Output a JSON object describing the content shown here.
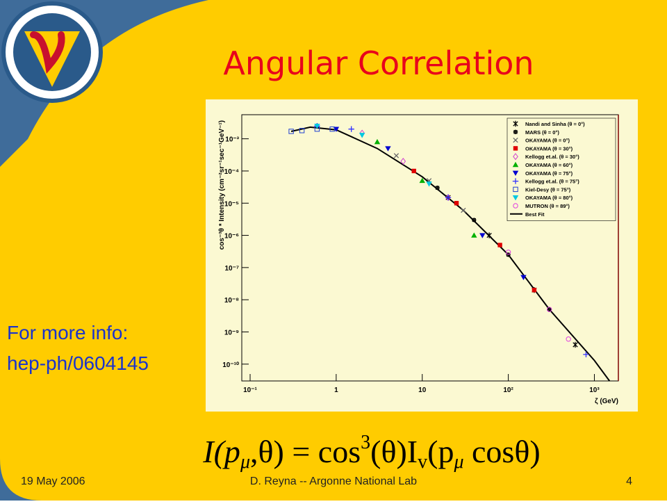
{
  "slide": {
    "title": "Angular Correlation",
    "info": [
      "For more info:",
      "hep-ph/0604145"
    ],
    "formula": [
      "I(p",
      "μ",
      ",θ) = cos",
      "3",
      "(θ)I",
      "v",
      "(p",
      "μ",
      " cosθ)"
    ],
    "footer": {
      "date": "19 May 2006",
      "author": "D. Reyna -- Argonne National Lab",
      "page": "4"
    }
  },
  "chart_data": {
    "type": "scatter",
    "y_label": "cos⁻³θ * Intensity (cm⁻²sr⁻¹sec⁻¹GeV⁻¹)",
    "x_label": "ζ (GeV)",
    "x_log": true,
    "y_log": true,
    "grid": false,
    "legend": "top-right",
    "xlim": [
      0.08,
      1900
    ],
    "ylim": [
      3e-11,
      0.0056
    ],
    "xticks": [
      {
        "value": 0.1,
        "label": "10⁻¹"
      },
      1,
      10,
      {
        "value": 100,
        "label": "10²"
      },
      {
        "value": 1000,
        "label": "10³"
      }
    ],
    "yticks": [
      {
        "value": 1e-10,
        "label": "10⁻¹⁰"
      },
      {
        "value": 1e-09,
        "label": "10⁻⁹"
      },
      {
        "value": 1e-08,
        "label": "10⁻⁸"
      },
      {
        "value": 1e-07,
        "label": "10⁻⁷"
      },
      {
        "value": 1e-06,
        "label": "10⁻⁶"
      },
      {
        "value": 1e-05,
        "label": "10⁻⁵"
      },
      {
        "value": 0.0001,
        "label": "10⁻⁴"
      },
      {
        "value": 0.001,
        "label": "10⁻³"
      }
    ],
    "series": [
      {
        "name": "Nandi and Sinha (θ = 0°)",
        "color": "#000000",
        "marker": "star",
        "x": [
          20,
          60,
          200,
          600
        ],
        "values": [
          1.5e-05,
          1e-06,
          2e-08,
          4e-10
        ]
      },
      {
        "name": "MARS (θ = 0°)",
        "color": "#000000",
        "marker": "cross-circle",
        "x": [
          15,
          40,
          100,
          300
        ],
        "values": [
          3e-05,
          3e-06,
          2.5e-07,
          5e-09
        ]
      },
      {
        "name": "OKAYAMA (θ = 0°)",
        "color": "#666666",
        "marker": "x",
        "x": [
          5,
          12,
          30
        ],
        "values": [
          0.0003,
          5e-05,
          6e-06
        ]
      },
      {
        "name": "OKAYAMA (θ = 30°)",
        "color": "#e00000",
        "marker": "square",
        "x": [
          8,
          25,
          80,
          200
        ],
        "values": [
          0.0001,
          1e-05,
          5e-07,
          2e-08
        ]
      },
      {
        "name": "Kellogg et.al. (θ = 30°)",
        "color": "#d040d0",
        "marker": "diamond",
        "x": [
          2,
          6,
          20
        ],
        "values": [
          0.0015,
          0.0002,
          1.5e-05
        ]
      },
      {
        "name": "OKAYAMA (θ = 60°)",
        "color": "#00b000",
        "marker": "triangle",
        "x": [
          3,
          10,
          40
        ],
        "values": [
          0.0008,
          5e-05,
          1e-06
        ]
      },
      {
        "name": "OKAYAMA (θ = 75°)",
        "color": "#0000d0",
        "marker": "triangle-down",
        "x": [
          1,
          4,
          50,
          150
        ],
        "values": [
          0.002,
          0.0005,
          1e-06,
          5e-08
        ]
      },
      {
        "name": "Kellogg et.al. (θ = 75°)",
        "color": "#3030ff",
        "marker": "plus",
        "x": [
          0.6,
          1.5,
          20,
          800
        ],
        "values": [
          0.0025,
          0.002,
          1.5e-05,
          2e-10
        ]
      },
      {
        "name": "Kiel-Desy (θ = 75°)",
        "color": "#2040d0",
        "marker": "open-square",
        "x": [
          0.3,
          0.4,
          0.6,
          0.9
        ],
        "values": [
          0.0017,
          0.0018,
          0.002,
          0.002
        ]
      },
      {
        "name": "OKAYAMA (θ = 80°)",
        "color": "#00c8e0",
        "marker": "triangle-down",
        "x": [
          0.6,
          2,
          12
        ],
        "values": [
          0.0025,
          0.0013,
          4e-05
        ]
      },
      {
        "name": "MUTRON (θ = 89°)",
        "color": "#e040e0",
        "marker": "circle",
        "x": [
          100,
          300,
          500
        ],
        "values": [
          3e-07,
          5e-09,
          6e-10
        ]
      }
    ],
    "fit": {
      "name": "Best Fit",
      "color": "#000000",
      "x": [
        0.3,
        0.5,
        1,
        3,
        10,
        30,
        100,
        300,
        1000,
        1500
      ],
      "values": [
        0.0017,
        0.0023,
        0.0019,
        0.0005,
        6.6e-05,
        6e-06,
        2.5e-07,
        5e-09,
        1.3e-10,
        3e-11
      ]
    }
  }
}
